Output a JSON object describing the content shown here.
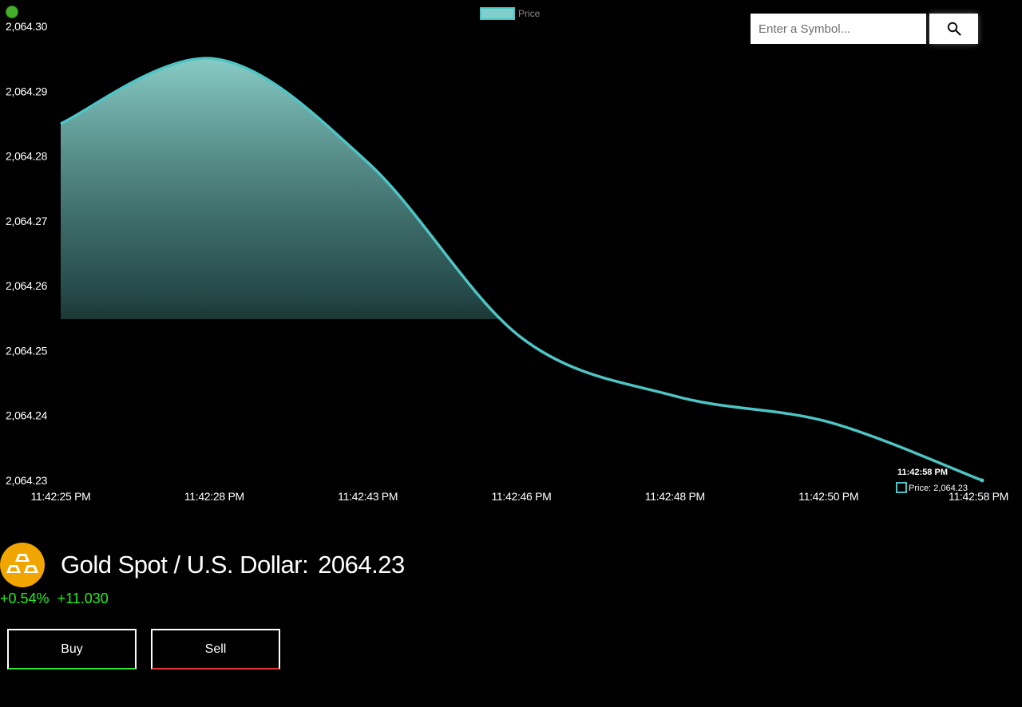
{
  "search": {
    "placeholder": "Enter a Symbol..."
  },
  "symbol": {
    "name": "Gold Spot / U.S. Dollar:",
    "price": "2064.23",
    "change_percent": "+0.54%",
    "change_amount": "+11.030",
    "logo_icon": "gold-bars-icon",
    "logo_color": "#f0a500"
  },
  "actions": {
    "buy_label": "Buy",
    "sell_label": "Sell"
  },
  "colors": {
    "line": "#4fc4c4",
    "up": "#22ee22",
    "down": "#e33939",
    "status": "#43b02a"
  },
  "chart_data": {
    "type": "area",
    "legend": {
      "label": "Price",
      "position": "top-center"
    },
    "x": [
      "11:42:25 PM",
      "11:42:28 PM",
      "11:42:43 PM",
      "11:42:46 PM",
      "11:42:48 PM",
      "11:42:50 PM",
      "11:42:58 PM"
    ],
    "series": [
      {
        "name": "Price",
        "values": [
          2064.285,
          2064.295,
          2064.279,
          2064.252,
          2064.243,
          2064.239,
          2064.23
        ]
      }
    ],
    "ylim": [
      2064.23,
      2064.3
    ],
    "yticks": [
      "2,064.30",
      "2,064.29",
      "2,064.28",
      "2,064.27",
      "2,064.26",
      "2,064.25",
      "2,064.24",
      "2,064.23"
    ],
    "grid": false,
    "tooltip": {
      "time": "11:42:58 PM",
      "text": "Price: 2,064.23"
    }
  }
}
